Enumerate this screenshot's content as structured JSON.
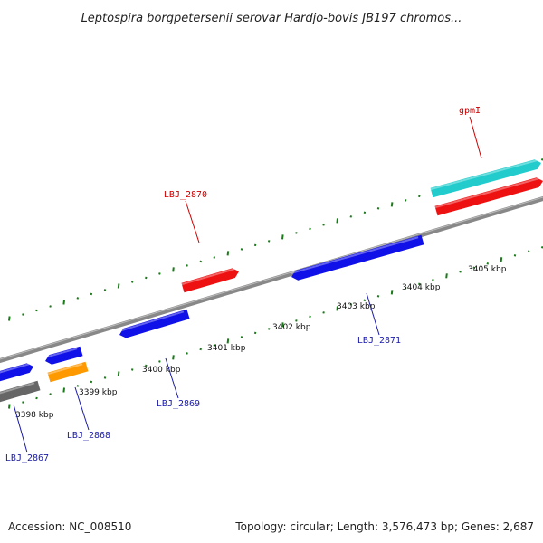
{
  "title": "Leptospira borgpetersenii serovar Hardjo-bovis JB197 chromos...",
  "footer": {
    "accession": "Accession: NC_008510",
    "summary": "Topology: circular; Length: 3,576,473 bp; Genes: 2,687"
  },
  "colors": {
    "backbone": "#888888",
    "ticks": "#1a7a1a",
    "forward_label": "#cc0000",
    "reverse_label": "#1a1aa6",
    "blue": "#1010e8",
    "red": "#ee1111",
    "cyan": "#22cccc",
    "orange": "#ff9900",
    "gray": "#666666"
  },
  "tick_labels": [
    "3398 kbp",
    "3399 kbp",
    "3400 kbp",
    "3401 kbp",
    "3402 kbp",
    "3403 kbp",
    "3404 kbp",
    "3405 kbp"
  ],
  "gene_labels": [
    {
      "name": "LBJ_2867",
      "strand": "reverse"
    },
    {
      "name": "LBJ_2868",
      "strand": "reverse"
    },
    {
      "name": "LBJ_2869",
      "strand": "reverse"
    },
    {
      "name": "LBJ_2870",
      "strand": "forward"
    },
    {
      "name": "LBJ_2871",
      "strand": "reverse"
    },
    {
      "name": "gpmI",
      "strand": "forward"
    }
  ]
}
